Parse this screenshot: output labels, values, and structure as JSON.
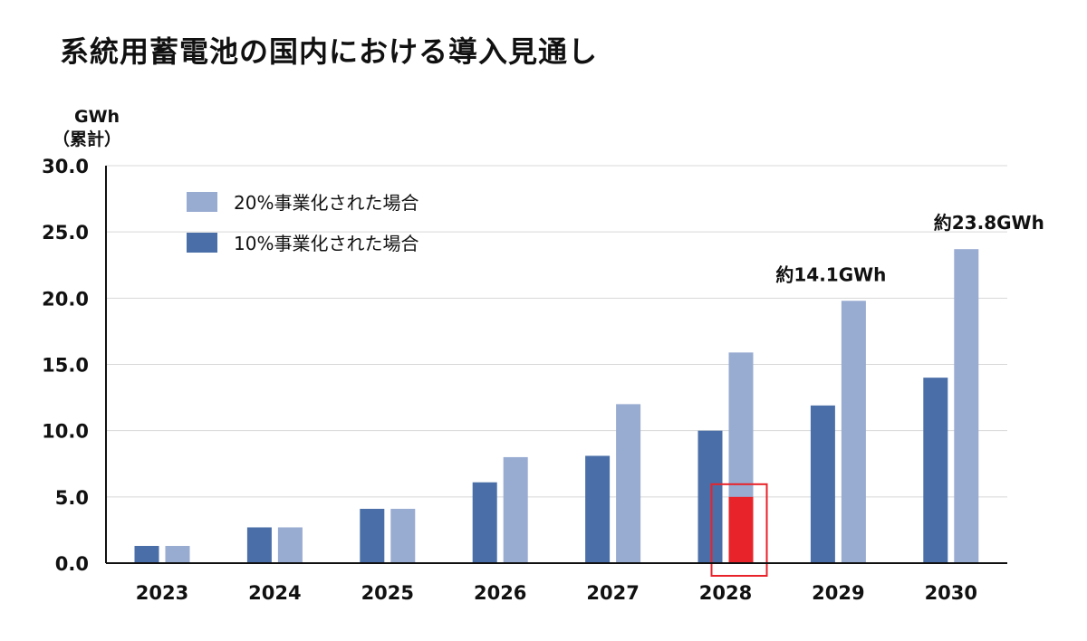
{
  "chart_data": {
    "type": "bar",
    "title": "系統用蓄電池の国内における導入見通し",
    "unit": "GWh",
    "unit_note": "（累計）",
    "ylim": [
      0,
      30
    ],
    "yticks": [
      "0.0",
      "5.0",
      "10.0",
      "15.0",
      "20.0",
      "25.0",
      "30.0"
    ],
    "ytick_values": [
      0,
      5,
      10,
      15,
      20,
      25,
      30
    ],
    "categories": [
      "2023",
      "2024",
      "2025",
      "2026",
      "2027",
      "2028",
      "2029",
      "2030"
    ],
    "series": [
      {
        "name": "10%事業化された場合",
        "color": "#4a6fa8",
        "values": [
          1.3,
          2.7,
          4.1,
          6.1,
          8.1,
          10.0,
          11.9,
          14.0
        ]
      },
      {
        "name": "20%事業化された場合",
        "color": "#98abd1",
        "values": [
          1.3,
          2.7,
          4.1,
          8.0,
          12.0,
          15.9,
          19.8,
          23.7
        ]
      }
    ],
    "highlight": {
      "category": "2028",
      "series": "20%事業化された場合",
      "value": 5.0,
      "color": "#e8232a",
      "box_color": "#e8232a"
    },
    "annotations": [
      {
        "text": "約14.1GWh",
        "category": "2029"
      },
      {
        "text": "約23.8GWh",
        "category": "2030"
      }
    ],
    "legend_position": "top-left"
  }
}
